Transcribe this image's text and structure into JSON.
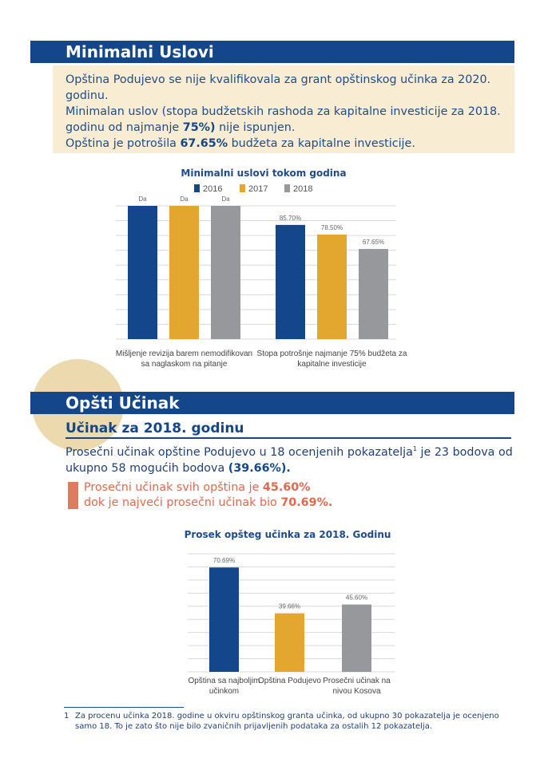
{
  "section1": {
    "title": "Minimalni Uslovi",
    "line1": "Opština Podujevo se nije kvalifikovala za grant opštinskog učinka za 2020. godinu.",
    "line2_pre": "Minimalan uslov (stopa budžetskih rashoda za kapitalne investicije za 2018. godinu od najmanje ",
    "line2_bold": "75%)",
    "line2_post": " nije ispunjen.",
    "line3_pre": "Opština je potrošila ",
    "line3_bold": "67.65%",
    "line3_post": " budžeta za kapitalne investicije."
  },
  "section2": {
    "title": "Opšti Učinak",
    "subtitle": "Učinak za 2018. godinu",
    "para_pre": "Prosečni učinak opštine Podujevo u 18 ocenjenih pokazatelja",
    "para_sup": "1",
    "para_mid": " je 23 bodova od ukupno 58 mogućih bodova ",
    "para_bold": "(39.66%).",
    "orange_pre1": "Prosečni učinak svih opština je ",
    "orange_bold1": "45.60%",
    "orange_pre2": "dok je najveći prosečni učinak bio ",
    "orange_bold2": "70.69%."
  },
  "footnote": {
    "num": "1",
    "text": "Za procenu učinka 2018. godine u okviru opštinskog granta učinka, od ukupno 30 pokazatelja je ocenjeno samo 18. To je zato što nije bilo zvaničnih prijavljenih podataka za ostalih 12 pokazatelja."
  },
  "colors": {
    "navy": "#13468a",
    "gold": "#e3a72f",
    "gray": "#97989b",
    "orange": "#e07b62",
    "cream": "#f8ecd2"
  },
  "chart_data": [
    {
      "type": "bar",
      "title": "Minimalni uslovi tokom godina",
      "categories": [
        "Mišljenje revizija barem nemodifikovan sa naglaskom na pitanje",
        "Stopa potrošnje najmanje 75% budžeta za kapitalne investicije"
      ],
      "series": [
        {
          "name": "2016",
          "color": "#13468a",
          "labels": [
            "Da",
            "85.70%"
          ],
          "values": [
            100,
            85.7
          ]
        },
        {
          "name": "2017",
          "color": "#e3a72f",
          "labels": [
            "Da",
            "78.50%"
          ],
          "values": [
            100,
            78.5
          ]
        },
        {
          "name": "2018",
          "color": "#97989b",
          "labels": [
            "Da",
            "67.65%"
          ],
          "values": [
            100,
            67.65
          ]
        }
      ],
      "ylim": [
        0,
        100
      ],
      "grid": true,
      "legend": "top"
    },
    {
      "type": "bar",
      "title": "Prosek opšteg učinka za 2018. Godinu",
      "categories": [
        "Opština sa najboljim učinkom",
        "Opština Podujevo",
        "Prosečni učinak na nivou Kosova"
      ],
      "values": [
        70.69,
        39.66,
        45.6
      ],
      "labels": [
        "70.69%",
        "39.66%",
        "45.60%"
      ],
      "colors": [
        "#13468a",
        "#e3a72f",
        "#97989b"
      ],
      "ylim": [
        0,
        80
      ],
      "grid": true
    }
  ]
}
